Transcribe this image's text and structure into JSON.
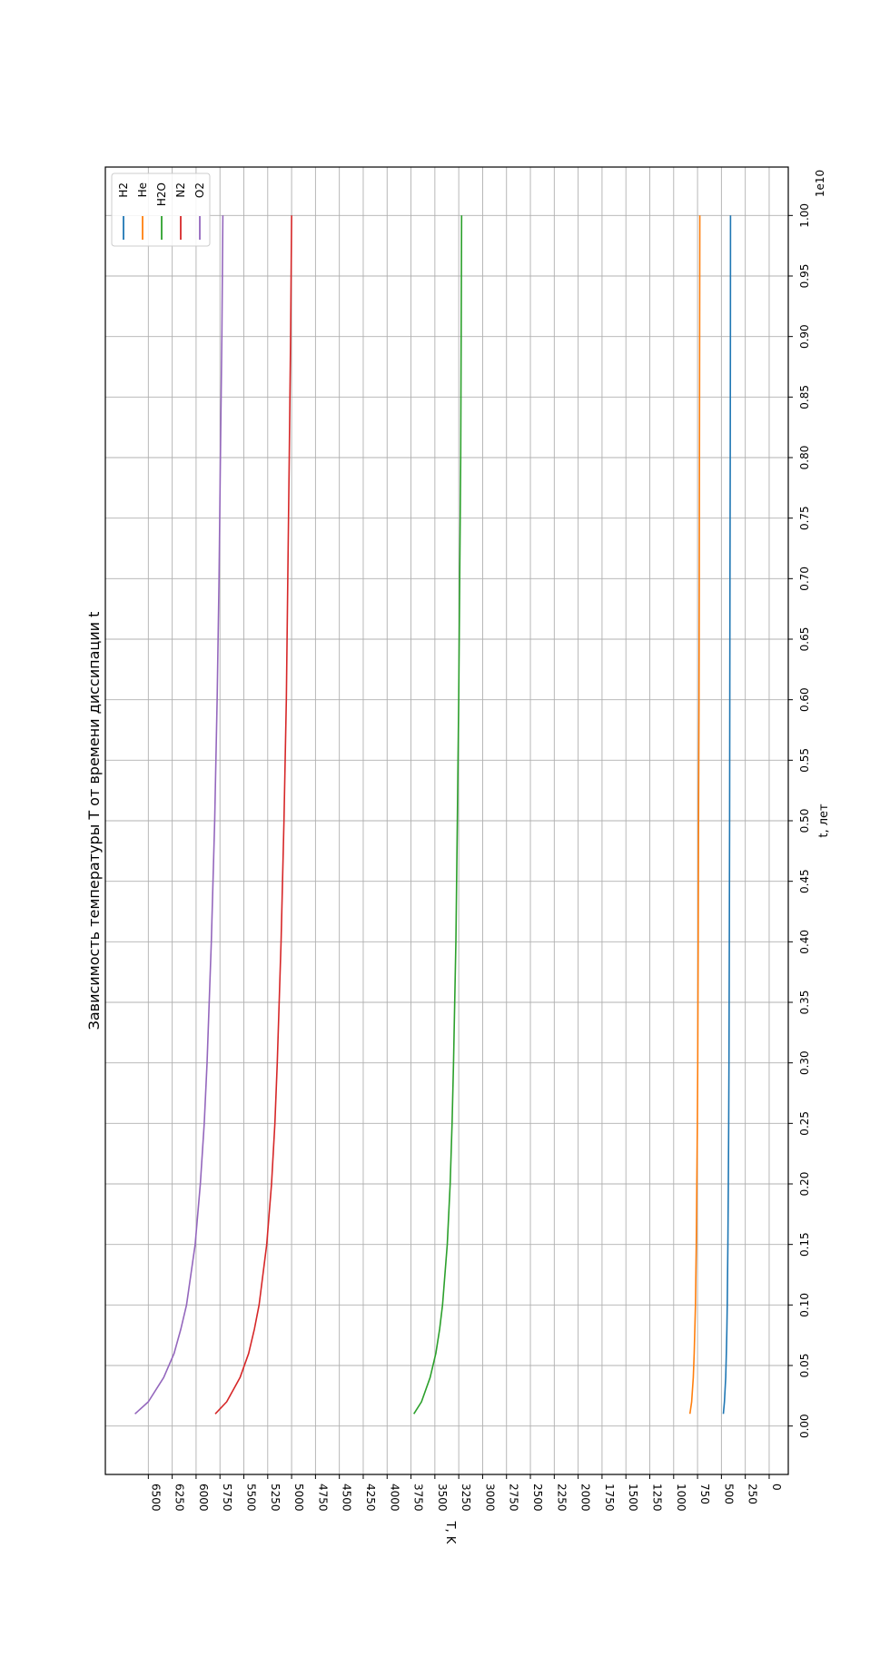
{
  "chart_data": {
    "type": "line",
    "title": "Зависимость температуры T от времени диссипации t",
    "xlabel": "t, лет",
    "ylabel": "T, K",
    "x_offset_label": "1e10",
    "xlim": [
      -0.04,
      1.04
    ],
    "ylim": [
      -200,
      6950
    ],
    "x_ticks": [
      0.0,
      0.05,
      0.1,
      0.15,
      0.2,
      0.25,
      0.3,
      0.35,
      0.4,
      0.45,
      0.5,
      0.55,
      0.6,
      0.65,
      0.7,
      0.75,
      0.8,
      0.85,
      0.9,
      0.95,
      1.0
    ],
    "x_tick_labels": [
      "0.00",
      "0.05",
      "0.10",
      "0.15",
      "0.20",
      "0.25",
      "0.30",
      "0.35",
      "0.40",
      "0.45",
      "0.50",
      "0.55",
      "0.60",
      "0.65",
      "0.70",
      "0.75",
      "0.80",
      "0.85",
      "0.90",
      "0.95",
      "1.00"
    ],
    "y_ticks": [
      0,
      250,
      500,
      750,
      1000,
      1250,
      1500,
      1750,
      2000,
      2250,
      2500,
      2750,
      3000,
      3250,
      3500,
      3750,
      4000,
      4250,
      4500,
      4750,
      5000,
      5250,
      5500,
      5750,
      6000,
      6250,
      6500
    ],
    "y_tick_labels": [
      "0",
      "250",
      "500",
      "750",
      "1000",
      "1250",
      "1500",
      "1750",
      "2000",
      "2250",
      "2500",
      "2750",
      "3000",
      "3250",
      "3500",
      "3750",
      "4000",
      "4250",
      "4500",
      "4750",
      "5000",
      "5250",
      "5500",
      "5750",
      "6000",
      "6250",
      "6500"
    ],
    "grid": true,
    "legend_position": "top-left",
    "orientation": "rotated-90-ccw",
    "x": [
      0.01,
      0.02,
      0.04,
      0.06,
      0.08,
      0.1,
      0.15,
      0.2,
      0.25,
      0.3,
      0.4,
      0.5,
      0.6,
      0.7,
      0.8,
      0.9,
      1.0
    ],
    "series": [
      {
        "name": "H2",
        "color": "#1f77b4",
        "values": [
          480,
          468,
          455,
          448,
          443,
          439,
          432,
          428,
          424,
          421,
          417,
          414,
          412,
          410,
          408,
          406,
          405
        ]
      },
      {
        "name": "He",
        "color": "#ff7f0e",
        "values": [
          830,
          812,
          795,
          785,
          778,
          772,
          763,
          757,
          752,
          748,
          743,
          739,
          735,
          732,
          730,
          728,
          726
        ]
      },
      {
        "name": "H2O",
        "color": "#2ca02c",
        "values": [
          3720,
          3640,
          3550,
          3490,
          3450,
          3420,
          3370,
          3340,
          3320,
          3305,
          3280,
          3265,
          3250,
          3240,
          3230,
          3225,
          3220
        ]
      },
      {
        "name": "N2",
        "color": "#d62728",
        "values": [
          5800,
          5680,
          5540,
          5450,
          5390,
          5340,
          5260,
          5210,
          5175,
          5150,
          5110,
          5080,
          5055,
          5040,
          5025,
          5010,
          5000
        ]
      },
      {
        "name": "O2",
        "color": "#9467bd",
        "values": [
          6640,
          6500,
          6340,
          6230,
          6160,
          6100,
          6010,
          5955,
          5915,
          5885,
          5840,
          5805,
          5780,
          5760,
          5745,
          5730,
          5720
        ]
      }
    ]
  }
}
